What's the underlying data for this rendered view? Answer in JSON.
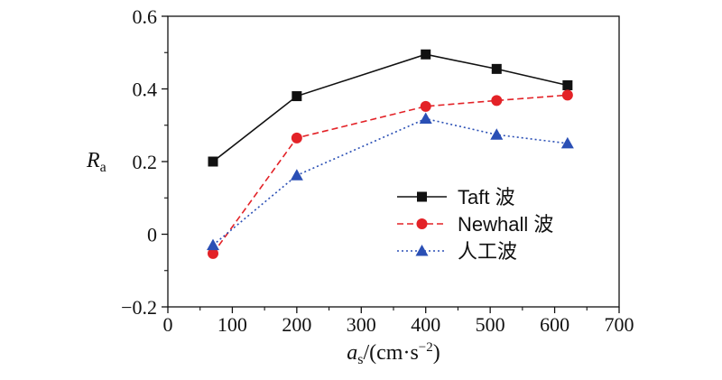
{
  "chart_data": {
    "type": "line",
    "xlabel": {
      "main": "a",
      "sub": "s",
      "units": "/(cm·s",
      "sup": "−2",
      "close": ")"
    },
    "ylabel": {
      "main": "R",
      "sub": "a"
    },
    "xlim": [
      0,
      700
    ],
    "ylim": [
      -0.2,
      0.6
    ],
    "xticks": [
      0,
      100,
      200,
      300,
      400,
      500,
      600,
      700
    ],
    "yticks": [
      -0.2,
      0,
      0.2,
      0.4,
      0.6
    ],
    "xtick_labels": [
      "0",
      "100",
      "200",
      "300",
      "400",
      "500",
      "600",
      "700"
    ],
    "ytick_labels": [
      "−0.2",
      "0",
      "0.2",
      "0.4",
      "0.6"
    ],
    "grid": false,
    "legend_position": "center-right",
    "x": [
      70,
      200,
      400,
      510,
      620
    ],
    "series": [
      {
        "name": "Taft 波",
        "values": [
          0.2,
          0.38,
          0.495,
          0.455,
          0.41
        ],
        "color": "#111111",
        "marker": "square",
        "dash": "solid"
      },
      {
        "name": "Newhall 波",
        "values": [
          -0.053,
          0.265,
          0.352,
          0.368,
          0.383
        ],
        "color": "#e32227",
        "marker": "circle",
        "dash": "dashed"
      },
      {
        "name": "人工波",
        "values": [
          -0.03,
          0.162,
          0.318,
          0.274,
          0.25
        ],
        "color": "#2a4fb5",
        "marker": "triangle",
        "dash": "dotted"
      }
    ]
  }
}
